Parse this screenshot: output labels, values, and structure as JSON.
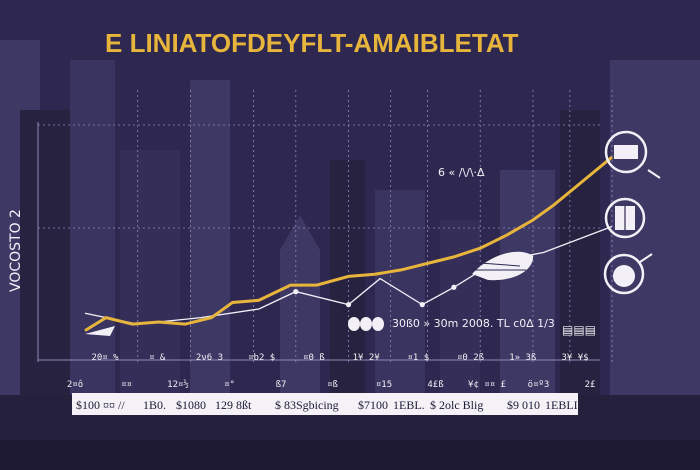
{
  "colors": {
    "background": "#2e2850",
    "skyline": "#3e3864",
    "skyline_dark": "#27223f",
    "grid": "#8f8ab8",
    "accent": "#e7b43c",
    "white": "#f2f0f6",
    "label_bg": "#f4f2f6",
    "label_text": "#1c1836"
  },
  "chart_data": {
    "type": "line",
    "title": "E LINIATOFDEYFLT-AMAIBLETAT",
    "ylabel": "VOCOSTO 2",
    "xlim": [
      0,
      100
    ],
    "ylim": [
      0,
      100
    ],
    "grid_x": [
      10,
      20,
      32,
      40,
      50,
      58,
      65,
      75,
      85,
      92,
      100
    ],
    "series": [
      {
        "name": "main",
        "color": "#e7b43c",
        "x": [
          0,
          4,
          9,
          14,
          19,
          24,
          28,
          33,
          39,
          44,
          50,
          55,
          60,
          65,
          70,
          75,
          80,
          85,
          89,
          94,
          100
        ],
        "y": [
          2,
          8,
          5,
          6,
          5,
          8,
          15,
          16,
          23,
          23,
          27,
          28,
          30,
          33,
          36,
          40,
          46,
          53,
          60,
          70,
          82
        ]
      },
      {
        "name": "secondary",
        "color": "#f2f0f6",
        "x": [
          0,
          10,
          22,
          33,
          40,
          50,
          56,
          64,
          70,
          78,
          87,
          100
        ],
        "y": [
          10,
          5,
          8,
          12,
          20,
          14,
          26,
          14,
          22,
          34,
          38,
          50
        ]
      }
    ],
    "markers": [
      {
        "x": 40,
        "y": 20
      },
      {
        "x": 50,
        "y": 14
      },
      {
        "x": 64,
        "y": 14
      },
      {
        "x": 70,
        "y": 22
      }
    ],
    "annotations": {
      "upper": "6 « /\\/\\·Δ",
      "middle": "30ß0 » 30m  2008. TL c0∆ 1/3",
      "badge": "▤▤▤"
    },
    "tick_row_1": [
      "20¤ %",
      "¤ &",
      "2ν6 3",
      "¤b2 $",
      "¤0 ß",
      "1¥ 2¥",
      "¤1 $",
      "¤0 2ß",
      "1» 3ß",
      "3¥ ¥$"
    ],
    "tick_row_2": [
      "2¤ô",
      "¤¤",
      "12¤½",
      "¤°",
      "ß7",
      "¤ß",
      "¤15",
      "4£ß",
      "¥¢ ¤¤ £",
      "ö¤º3",
      "2£"
    ],
    "bottom_labels": [
      "$100 ¤¤ //",
      "1B0.",
      "$1080",
      "129 8ßt",
      "$ 83Sgbicing",
      "$7100",
      "1EBL.",
      "$ 2olc Blig",
      "$9 010",
      "1EBLI"
    ]
  }
}
